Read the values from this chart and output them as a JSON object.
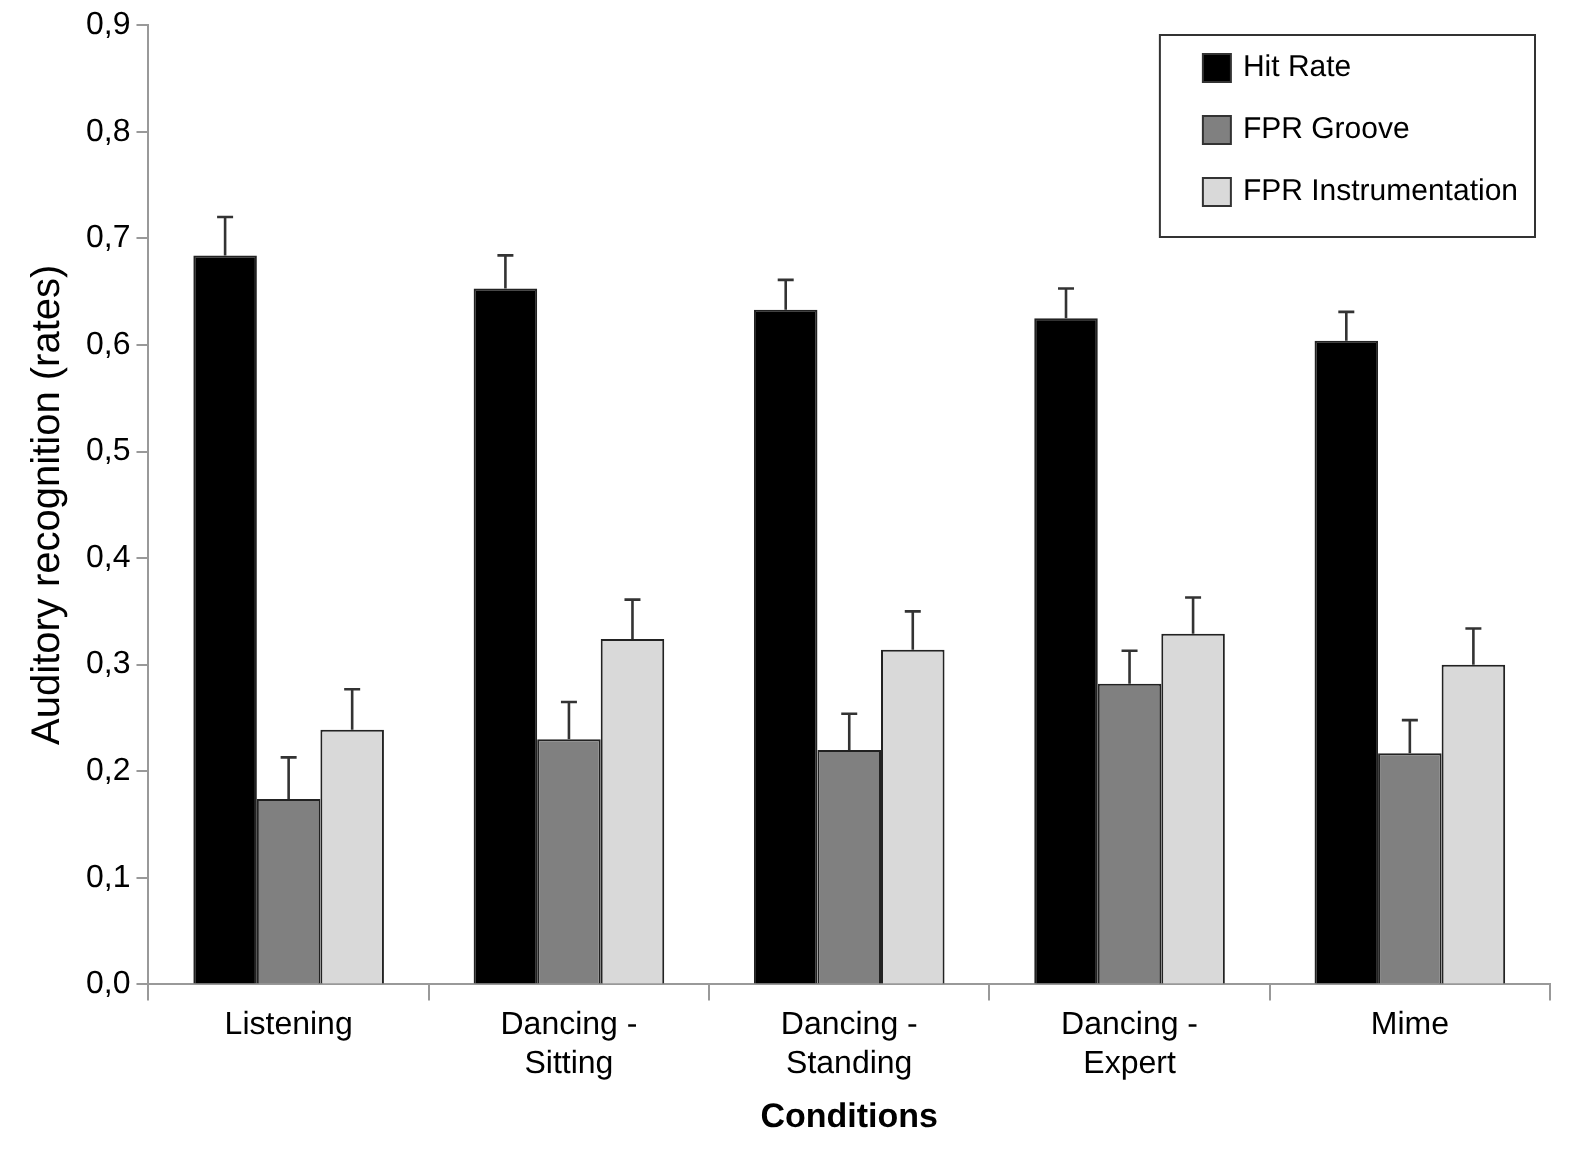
{
  "chart_data": {
    "type": "bar",
    "xlabel": "Conditions",
    "ylabel": "Auditory recognition (rates)",
    "categories": [
      "Listening",
      "Dancing -\nSitting",
      "Dancing -\nStanding",
      "Dancing -\nExpert",
      "Mime"
    ],
    "series": [
      {
        "name": "Hit Rate",
        "color": "#000000",
        "values": [
          0.684,
          0.653,
          0.633,
          0.625,
          0.604
        ],
        "errors": [
          [
            0.684,
            0.72
          ],
          [
            0.653,
            0.684
          ],
          [
            0.633,
            0.661
          ],
          [
            0.625,
            0.653
          ],
          [
            0.604,
            0.631
          ]
        ]
      },
      {
        "name": "FPR Groove",
        "color": "#808080",
        "values": [
          0.174,
          0.23,
          0.22,
          0.282,
          0.217
        ],
        "errors": [
          [
            0.174,
            0.213
          ],
          [
            0.23,
            0.265
          ],
          [
            0.22,
            0.254
          ],
          [
            0.282,
            0.313
          ],
          [
            0.217,
            0.248
          ]
        ]
      },
      {
        "name": "FPR Instrumentation",
        "color": "#d9d9d9",
        "values": [
          0.239,
          0.324,
          0.314,
          0.329,
          0.3
        ],
        "errors": [
          [
            0.239,
            0.277
          ],
          [
            0.324,
            0.361
          ],
          [
            0.314,
            0.35
          ],
          [
            0.329,
            0.363
          ],
          [
            0.3,
            0.334
          ]
        ]
      }
    ],
    "ylim": [
      0,
      0.9
    ],
    "yticks": [
      {
        "value": 0,
        "label": "0,0"
      },
      {
        "value": 0.1,
        "label": "0,1"
      },
      {
        "value": 0.2,
        "label": "0,2"
      },
      {
        "value": 0.3,
        "label": "0,3"
      },
      {
        "value": 0.4,
        "label": "0,4"
      },
      {
        "value": 0.5,
        "label": "0,5"
      },
      {
        "value": 0.6,
        "label": "0,6"
      },
      {
        "value": 0.7,
        "label": "0,7"
      },
      {
        "value": 0.8,
        "label": "0,8"
      },
      {
        "value": 0.9,
        "label": "0,9"
      }
    ],
    "grid": false,
    "legend": "top right"
  }
}
